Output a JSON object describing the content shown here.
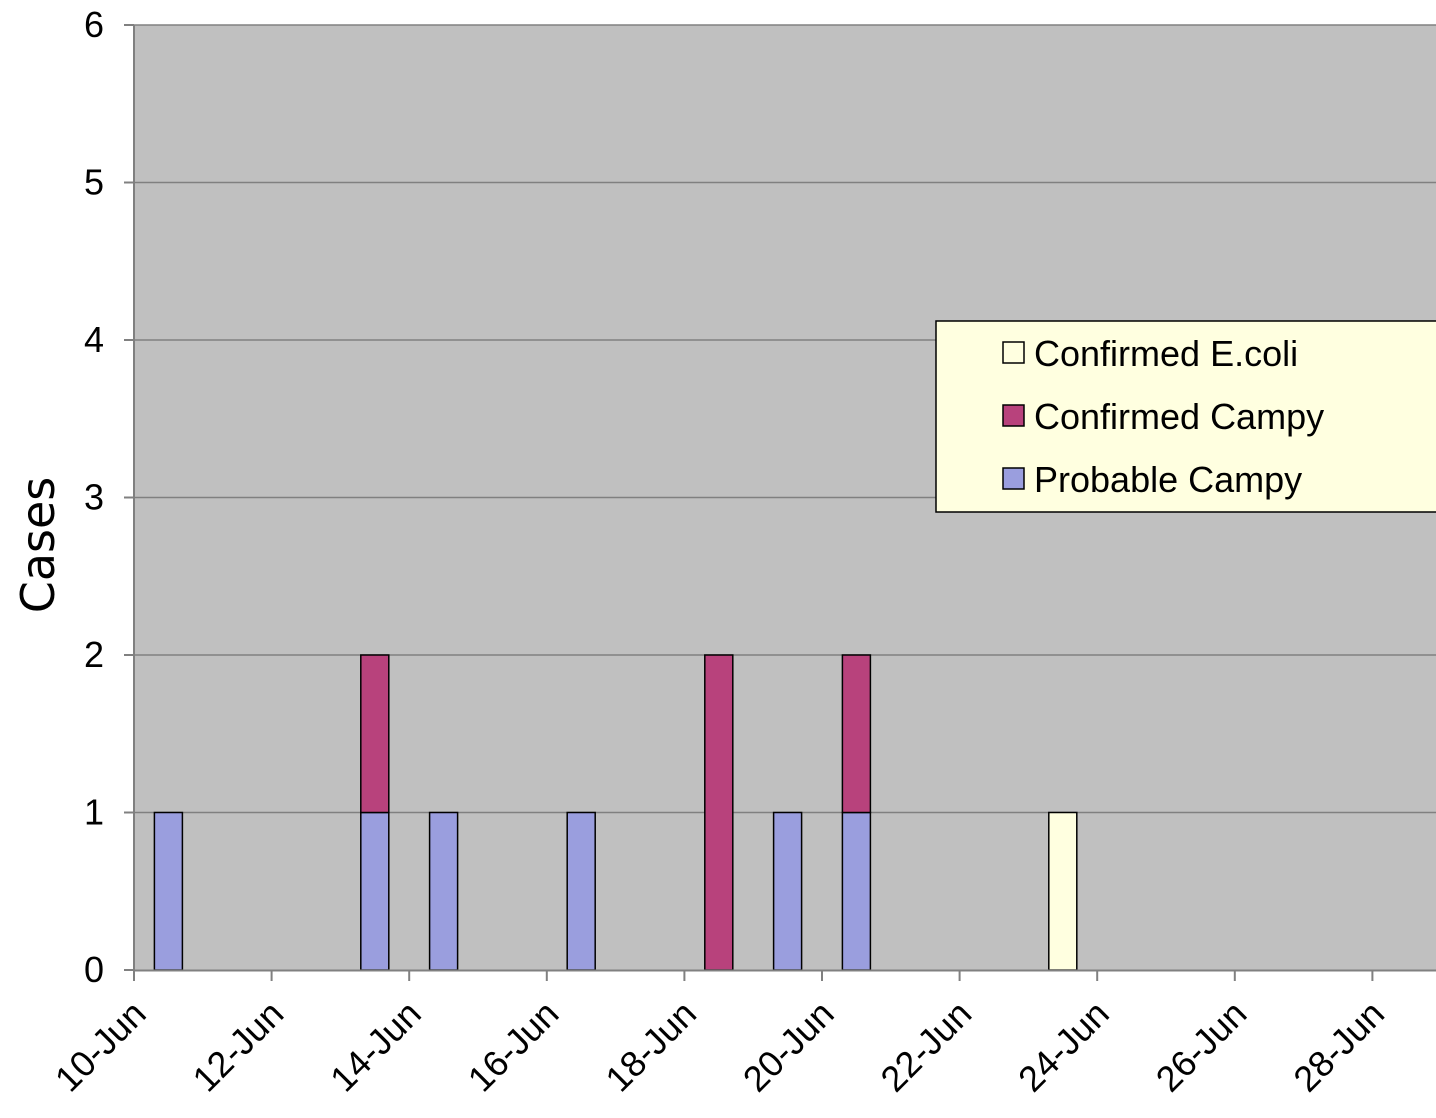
{
  "chart_data": {
    "type": "bar",
    "stacked": true,
    "ylabel": "Cases",
    "xlabel": "",
    "title": "",
    "ylim": [
      0,
      6
    ],
    "y_ticks": [
      0,
      1,
      2,
      3,
      4,
      5,
      6
    ],
    "x_ticks": [
      "10-Jun",
      "12-Jun",
      "14-Jun",
      "16-Jun",
      "18-Jun",
      "20-Jun",
      "22-Jun",
      "24-Jun",
      "26-Jun",
      "28-Jun"
    ],
    "grid": true,
    "legend_position": "right",
    "colors": {
      "plot_background": "#c0c0c0",
      "legend_background": "#ffffe0",
      "grid": "#808080"
    },
    "series": [
      {
        "name": "Probable Campy",
        "color": "#9a9ede",
        "points": [
          {
            "date": "10-Jun",
            "value": 1
          },
          {
            "date": "13-Jun",
            "value": 1
          },
          {
            "date": "14-Jun",
            "value": 1
          },
          {
            "date": "16-Jun",
            "value": 1
          },
          {
            "date": "19-Jun",
            "value": 1
          },
          {
            "date": "20-Jun",
            "value": 1
          }
        ]
      },
      {
        "name": "Confirmed Campy",
        "color": "#b8427c",
        "points": [
          {
            "date": "13-Jun",
            "value": 1
          },
          {
            "date": "18-Jun",
            "value": 2
          },
          {
            "date": "20-Jun",
            "value": 1
          }
        ]
      },
      {
        "name": "Confirmed E.coli",
        "color": "#ffffe0",
        "points": [
          {
            "date": "23-Jun",
            "value": 1
          }
        ]
      }
    ]
  }
}
